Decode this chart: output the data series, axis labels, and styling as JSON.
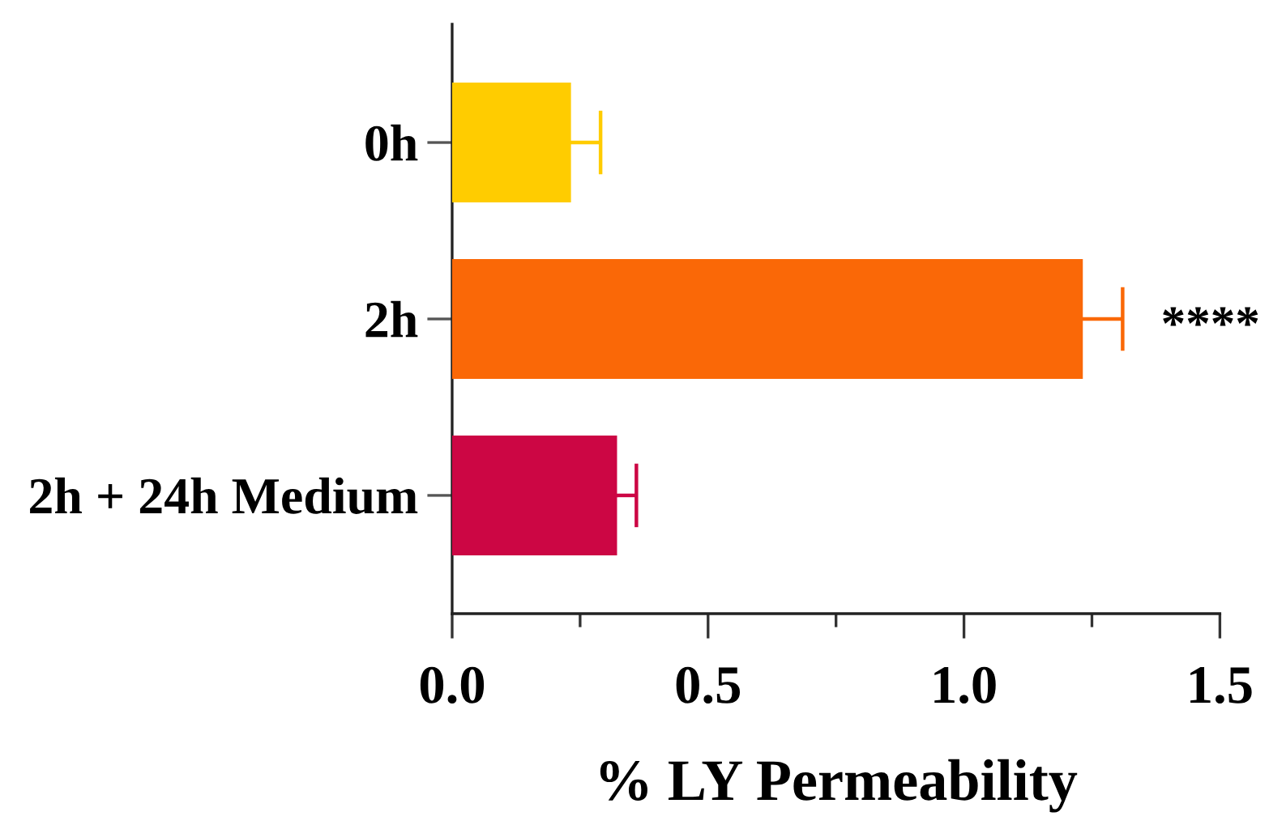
{
  "chart_data": {
    "type": "bar",
    "orientation": "horizontal",
    "xlabel": "% LY Permeability",
    "categories": [
      "0h",
      "2h",
      "2h + 24h Medium"
    ],
    "values": [
      0.23,
      1.23,
      0.32
    ],
    "colors": [
      "#ffcc00",
      "#fa6807",
      "#cc0644"
    ],
    "errors": [
      [
        0.23,
        0.29
      ],
      [
        1.23,
        1.31
      ],
      [
        0.32,
        0.36
      ]
    ],
    "xlim": [
      0,
      1.5
    ],
    "xticks": [
      {
        "value": 0,
        "label": "0.0"
      },
      {
        "value": 0.25,
        "label": null
      },
      0.5,
      {
        "value": 0.75,
        "label": null
      },
      {
        "value": 1,
        "label": "1.0"
      },
      {
        "value": 1.25,
        "label": null
      },
      1.5
    ],
    "annotations": [
      {
        "text": "****",
        "x": 1.31,
        "y": "2h"
      }
    ]
  }
}
